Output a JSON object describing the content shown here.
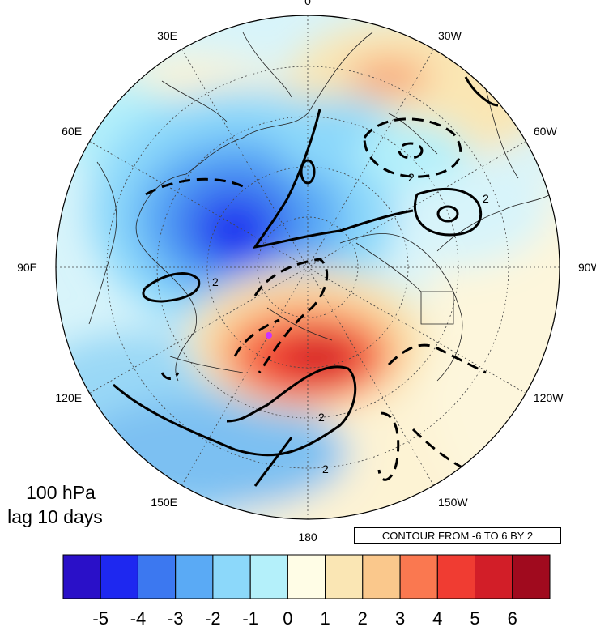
{
  "map": {
    "projection": "north-polar-stereographic",
    "longitude_labels": [
      {
        "text": "0",
        "lon": 0
      },
      {
        "text": "30W",
        "lon": -30
      },
      {
        "text": "60W",
        "lon": -60
      },
      {
        "text": "90W",
        "lon": -90
      },
      {
        "text": "120W",
        "lon": -120
      },
      {
        "text": "150W",
        "lon": -150
      },
      {
        "text": "180",
        "lon": 180
      },
      {
        "text": "150E",
        "lon": 150
      },
      {
        "text": "120E",
        "lon": 120
      },
      {
        "text": "90E",
        "lon": 90
      },
      {
        "text": "60E",
        "lon": 60
      },
      {
        "text": "30E",
        "lon": 30
      }
    ],
    "marker_color": "#cc33ff",
    "contour_line_label": "2"
  },
  "annotation": {
    "level": "100 hPa",
    "lag": "lag 10 days",
    "contour_info": "CONTOUR FROM -6 TO 6 BY 2"
  },
  "colorbar": {
    "colors": [
      "#2a10c8",
      "#1e28f0",
      "#3c78f0",
      "#5aaaf5",
      "#8cd8fa",
      "#b4f0fa",
      "#fffde6",
      "#fae6b4",
      "#fac88c",
      "#fa7850",
      "#f03c32",
      "#d21e28",
      "#a00a1e"
    ],
    "tick_labels": [
      "-5",
      "-4",
      "-3",
      "-2",
      "-1",
      "0",
      "1",
      "2",
      "3",
      "4",
      "5",
      "6"
    ]
  }
}
